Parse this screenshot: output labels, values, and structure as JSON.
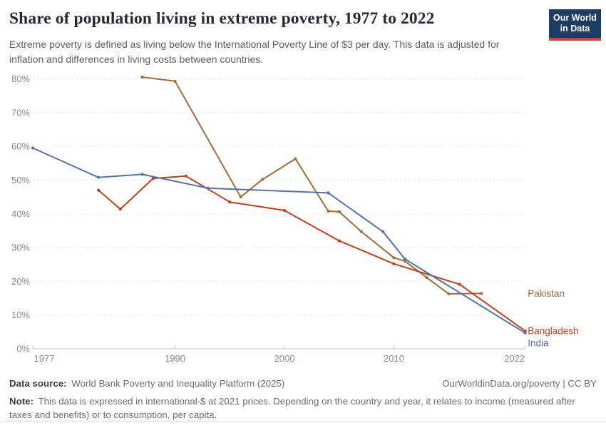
{
  "header": {
    "title": "Share of population living in extreme poverty, 1977 to 2022",
    "subtitle": "Extreme poverty is defined as living below the International Poverty Line of $3 per day. This data is adjusted for inflation and differences in living costs between countries.",
    "logo": {
      "line1": "Our World",
      "line2": "in Data",
      "bg_color": "#1d3d63",
      "accent_color": "#dc3e32"
    }
  },
  "chart_data": {
    "type": "line",
    "title": "Share of population living in extreme poverty, 1977 to 2022",
    "x_axis": {
      "range": [
        1977,
        2022
      ],
      "tick_labels": [
        "1977",
        "1990",
        "2000",
        "2010",
        "2022"
      ]
    },
    "y_axis": {
      "range": [
        0,
        80
      ],
      "unit": "%",
      "grid": "dashed",
      "tick_labels": [
        "0%",
        "10%",
        "20%",
        "30%",
        "40%",
        "50%",
        "60%",
        "70%",
        "80%"
      ]
    },
    "legend_position": "right-end-of-line",
    "series": [
      {
        "name": "Pakistan",
        "color": "#9e6d3e",
        "points": [
          [
            1987,
            80.5
          ],
          [
            1990,
            79.3
          ],
          [
            1996,
            45.0
          ],
          [
            1998,
            50.2
          ],
          [
            2001,
            56.3
          ],
          [
            2004,
            40.8
          ],
          [
            2005,
            40.6
          ],
          [
            2007,
            34.8
          ],
          [
            2010,
            27.0
          ],
          [
            2011,
            26.0
          ],
          [
            2013,
            21.1
          ],
          [
            2015,
            16.3
          ],
          [
            2018,
            16.4
          ]
        ]
      },
      {
        "name": "Bangladesh",
        "color": "#bb4020",
        "points": [
          [
            1983,
            47.0
          ],
          [
            1985,
            41.4
          ],
          [
            1988,
            50.5
          ],
          [
            1991,
            51.2
          ],
          [
            1995,
            43.5
          ],
          [
            2000,
            41.0
          ],
          [
            2005,
            32.0
          ],
          [
            2010,
            25.2
          ],
          [
            2016,
            19.1
          ],
          [
            2022,
            5.3
          ]
        ]
      },
      {
        "name": "India",
        "color": "#5373a6",
        "points": [
          [
            1977,
            59.5
          ],
          [
            1983,
            50.8
          ],
          [
            1987,
            51.7
          ],
          [
            1993,
            47.6
          ],
          [
            2004,
            46.2
          ],
          [
            2009,
            34.7
          ],
          [
            2011,
            26.6
          ],
          [
            2022,
            4.7
          ]
        ]
      }
    ]
  },
  "footer": {
    "source_label": "Data source:",
    "source_value": "World Bank Poverty and Inequality Platform (2025)",
    "attribution": "OurWorldinData.org/poverty | CC BY",
    "note_label": "Note:",
    "note_value": "This data is expressed in international-$ at 2021 prices. Depending on the country and year, it relates to income (measured after taxes and benefits) or to consumption, per capita."
  }
}
